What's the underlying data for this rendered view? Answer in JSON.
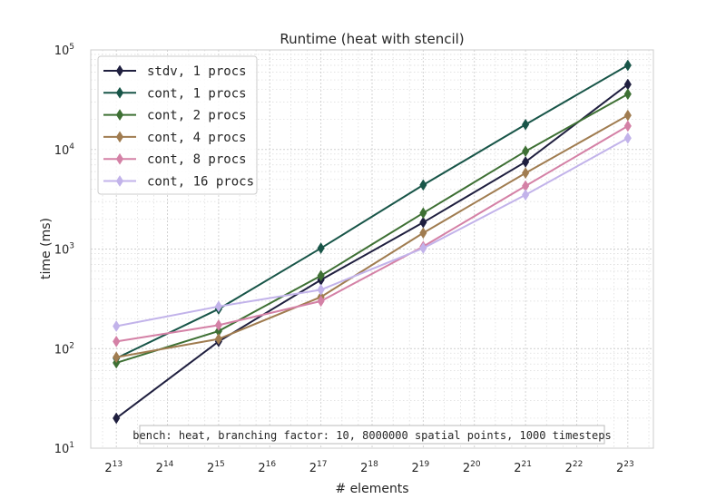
{
  "chart_data": {
    "type": "line",
    "title": "Runtime (heat with stencil)",
    "xlabel": "# elements",
    "ylabel": "time (ms)",
    "x_scale": "log2",
    "y_scale": "log10",
    "x": [
      8192,
      32768,
      131072,
      524288,
      2097152,
      8388608
    ],
    "xlim_exp": [
      12.5,
      23.5
    ],
    "ylim_exp": [
      1,
      5
    ],
    "x_ticks": [
      {
        "base": "2",
        "exp": "13",
        "e": 13
      },
      {
        "base": "2",
        "exp": "14",
        "e": 14
      },
      {
        "base": "2",
        "exp": "15",
        "e": 15
      },
      {
        "base": "2",
        "exp": "16",
        "e": 16
      },
      {
        "base": "2",
        "exp": "17",
        "e": 17
      },
      {
        "base": "2",
        "exp": "18",
        "e": 18
      },
      {
        "base": "2",
        "exp": "19",
        "e": 19
      },
      {
        "base": "2",
        "exp": "20",
        "e": 20
      },
      {
        "base": "2",
        "exp": "21",
        "e": 21
      },
      {
        "base": "2",
        "exp": "22",
        "e": 22
      },
      {
        "base": "2",
        "exp": "23",
        "e": 23
      }
    ],
    "y_ticks": [
      {
        "base": "10",
        "exp": "1",
        "e": 1
      },
      {
        "base": "10",
        "exp": "2",
        "e": 2
      },
      {
        "base": "10",
        "exp": "3",
        "e": 3
      },
      {
        "base": "10",
        "exp": "4",
        "e": 4
      },
      {
        "base": "10",
        "exp": "5",
        "e": 5
      }
    ],
    "grid": true,
    "legend_position": "top-left",
    "marker": "thin-diamond",
    "annotation": "bench: heat, branching factor: 10, 8000000 spatial points, 1000 timesteps",
    "series": [
      {
        "name": "stdv, 1 procs",
        "color": "#1f1f3f",
        "values": [
          20,
          118,
          490,
          1850,
          7500,
          45000
        ]
      },
      {
        "name": "cont, 1 procs",
        "color": "#185548",
        "values": [
          80,
          250,
          1020,
          4400,
          17800,
          70000
        ]
      },
      {
        "name": "cont, 2 procs",
        "color": "#3e7034",
        "values": [
          72,
          150,
          540,
          2300,
          9600,
          36000
        ]
      },
      {
        "name": "cont, 4 procs",
        "color": "#a07c50",
        "values": [
          82,
          125,
          330,
          1450,
          5800,
          22000
        ]
      },
      {
        "name": "cont, 8 procs",
        "color": "#d481a6",
        "values": [
          118,
          172,
          300,
          1060,
          4300,
          17200
        ]
      },
      {
        "name": "cont, 16 procs",
        "color": "#c2b3ea",
        "values": [
          168,
          265,
          390,
          1020,
          3500,
          13000
        ]
      }
    ]
  }
}
